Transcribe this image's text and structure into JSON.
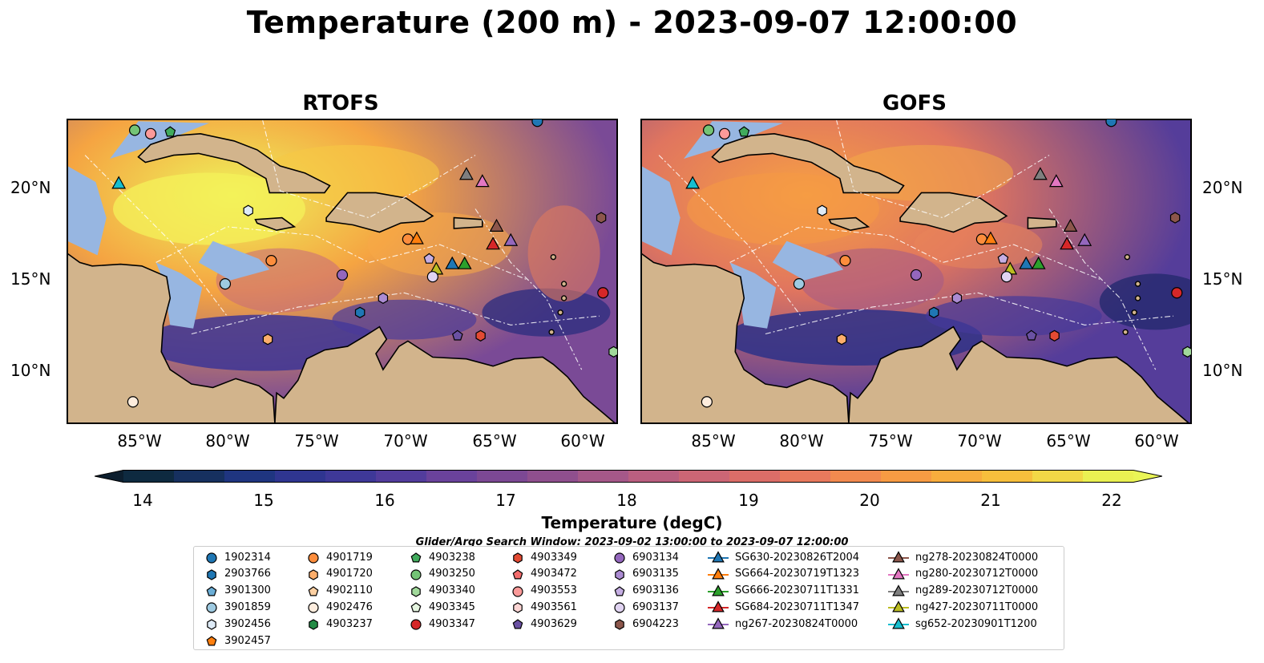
{
  "title": "Temperature (200 m) - 2023-09-07 12:00:00",
  "panels": [
    {
      "name": "RTOFS"
    },
    {
      "name": "GOFS"
    }
  ],
  "axes": {
    "lat_ticks": [
      "20°N",
      "15°N",
      "10°N"
    ],
    "lon_ticks": [
      "85°W",
      "80°W",
      "75°W",
      "70°W",
      "65°W",
      "60°W"
    ],
    "lon_range": [
      -89,
      -58
    ],
    "lat_range": [
      7,
      24
    ]
  },
  "colorbar": {
    "label": "Temperature (degC)",
    "ticks": [
      "14",
      "15",
      "16",
      "17",
      "18",
      "19",
      "20",
      "21",
      "22"
    ],
    "range": [
      14,
      22
    ],
    "colors": [
      "#0e2a40",
      "#16305f",
      "#1f3580",
      "#2f3590",
      "#3e3898",
      "#523c9c",
      "#6a429b",
      "#7c4894",
      "#8f4f8e",
      "#a55889",
      "#ba5f80",
      "#cc6675",
      "#db6d68",
      "#e8795d",
      "#f28a4f",
      "#f79b43",
      "#f8ad3d",
      "#f7bf3c",
      "#f2d846",
      "#eaf052"
    ]
  },
  "search_window": "Glider/Argo Search Window: 2023-09-02 13:00:00 to 2023-09-07 12:00:00",
  "legend": {
    "columns": [
      [
        {
          "label": "1902314",
          "marker": "circle",
          "color": "#1f77b4"
        },
        {
          "label": "2903766",
          "marker": "hexagon",
          "color": "#1f77b4"
        },
        {
          "label": "3901300",
          "marker": "pentagon",
          "color": "#6baed6"
        },
        {
          "label": "3901859",
          "marker": "circle",
          "color": "#9ecae1"
        },
        {
          "label": "3902456",
          "marker": "hexagon",
          "color": "#deebf7"
        },
        {
          "label": "3902457",
          "marker": "pentagon",
          "color": "#ff7f0e"
        }
      ],
      [
        {
          "label": "4901719",
          "marker": "circle",
          "color": "#fd8d3c"
        },
        {
          "label": "4901720",
          "marker": "hexagon",
          "color": "#fdae6b"
        },
        {
          "label": "4902110",
          "marker": "pentagon",
          "color": "#fdd0a2"
        },
        {
          "label": "4902476",
          "marker": "circle",
          "color": "#feedde"
        },
        {
          "label": "4903237",
          "marker": "hexagon",
          "color": "#238b45"
        }
      ],
      [
        {
          "label": "4903238",
          "marker": "pentagon",
          "color": "#41ab5d"
        },
        {
          "label": "4903250",
          "marker": "circle",
          "color": "#74c476"
        },
        {
          "label": "4903340",
          "marker": "hexagon",
          "color": "#a1d99b"
        },
        {
          "label": "4903345",
          "marker": "pentagon",
          "color": "#e5f5e0"
        },
        {
          "label": "4903347",
          "marker": "circle",
          "color": "#d62728"
        }
      ],
      [
        {
          "label": "4903349",
          "marker": "hexagon",
          "color": "#e34a33"
        },
        {
          "label": "4903472",
          "marker": "pentagon",
          "color": "#f46d6d"
        },
        {
          "label": "4903553",
          "marker": "circle",
          "color": "#fb9a99"
        },
        {
          "label": "4903561",
          "marker": "hexagon",
          "color": "#fcd5d4"
        },
        {
          "label": "4903629",
          "marker": "pentagon",
          "color": "#6a51a3"
        }
      ],
      [
        {
          "label": "6903134",
          "marker": "circle",
          "color": "#9467bd"
        },
        {
          "label": "6903135",
          "marker": "hexagon",
          "color": "#ab8bd2"
        },
        {
          "label": "6903136",
          "marker": "pentagon",
          "color": "#c5aee3"
        },
        {
          "label": "6903137",
          "marker": "circle",
          "color": "#e0d3f1"
        },
        {
          "label": "6904223",
          "marker": "hexagon",
          "color": "#8c564b"
        }
      ],
      [
        {
          "label": "SG630-20230826T2004",
          "marker": "triangle",
          "color": "#1f77b4"
        },
        {
          "label": "SG664-20230719T1323",
          "marker": "triangle",
          "color": "#ff7f0e"
        },
        {
          "label": "SG666-20230711T1331",
          "marker": "triangle",
          "color": "#2ca02c"
        },
        {
          "label": "SG684-20230711T1347",
          "marker": "triangle",
          "color": "#d62728"
        },
        {
          "label": "ng267-20230824T0000",
          "marker": "triangle",
          "color": "#9467bd"
        }
      ],
      [
        {
          "label": "ng278-20230824T0000",
          "marker": "triangle",
          "color": "#8c564b"
        },
        {
          "label": "ng280-20230712T0000",
          "marker": "triangle",
          "color": "#e377c2"
        },
        {
          "label": "ng289-20230712T0000",
          "marker": "triangle",
          "color": "#7f7f7f"
        },
        {
          "label": "ng427-20230711T0000",
          "marker": "triangle",
          "color": "#bcbd22"
        },
        {
          "label": "sg652-20230901T1200",
          "marker": "triangle",
          "color": "#17becf"
        }
      ]
    ]
  },
  "platforms": [
    {
      "id": "1902314",
      "lon": -62.5,
      "lat": 23.9
    },
    {
      "id": "4903250",
      "lon": -85.2,
      "lat": 23.4
    },
    {
      "id": "4903553",
      "lon": -84.3,
      "lat": 23.2
    },
    {
      "id": "4903238",
      "lon": -83.2,
      "lat": 23.3
    },
    {
      "id": "sg652-20230901T1200",
      "lon": -86.1,
      "lat": 20.4
    },
    {
      "id": "ng289-20230712T0000",
      "lon": -66.5,
      "lat": 20.9
    },
    {
      "id": "ng280-20230712T0000",
      "lon": -65.6,
      "lat": 20.5
    },
    {
      "id": "3902456",
      "lon": -78.8,
      "lat": 18.9
    },
    {
      "id": "6904223",
      "lon": -58.9,
      "lat": 18.5
    },
    {
      "id": "ng278-20230824T0000",
      "lon": -64.8,
      "lat": 18.0
    },
    {
      "id": "4901719",
      "lon": -69.8,
      "lat": 17.3
    },
    {
      "id": "SG664-20230719T1323",
      "lon": -69.3,
      "lat": 17.3
    },
    {
      "id": "ng267-20230824T0000",
      "lon": -64.0,
      "lat": 17.2
    },
    {
      "id": "SG684-20230711T1347",
      "lon": -65.0,
      "lat": 17.0
    },
    {
      "id": "6903136",
      "lon": -68.6,
      "lat": 16.2
    },
    {
      "id": "4901719b",
      "lon": -77.5,
      "lat": 16.1
    },
    {
      "id": "SG630-20230826T2004",
      "lon": -67.3,
      "lat": 15.9
    },
    {
      "id": "SG666-20230711T1331",
      "lon": -66.6,
      "lat": 15.9
    },
    {
      "id": "ng427-20230711T0000",
      "lon": -68.2,
      "lat": 15.6
    },
    {
      "id": "6903137",
      "lon": -68.4,
      "lat": 15.2
    },
    {
      "id": "6903134",
      "lon": -73.5,
      "lat": 15.3
    },
    {
      "id": "3901859",
      "lon": -80.1,
      "lat": 14.8
    },
    {
      "id": "4903347",
      "lon": -58.8,
      "lat": 14.3
    },
    {
      "id": "6903135",
      "lon": -71.2,
      "lat": 14.0
    },
    {
      "id": "2903766",
      "lon": -72.5,
      "lat": 13.2
    },
    {
      "id": "4903629",
      "lon": -67.0,
      "lat": 11.9
    },
    {
      "id": "4903349",
      "lon": -65.7,
      "lat": 11.9
    },
    {
      "id": "4901720",
      "lon": -77.7,
      "lat": 11.7
    },
    {
      "id": "4903340",
      "lon": -58.2,
      "lat": 11.0
    },
    {
      "id": "4902476",
      "lon": -85.3,
      "lat": 8.2
    }
  ]
}
